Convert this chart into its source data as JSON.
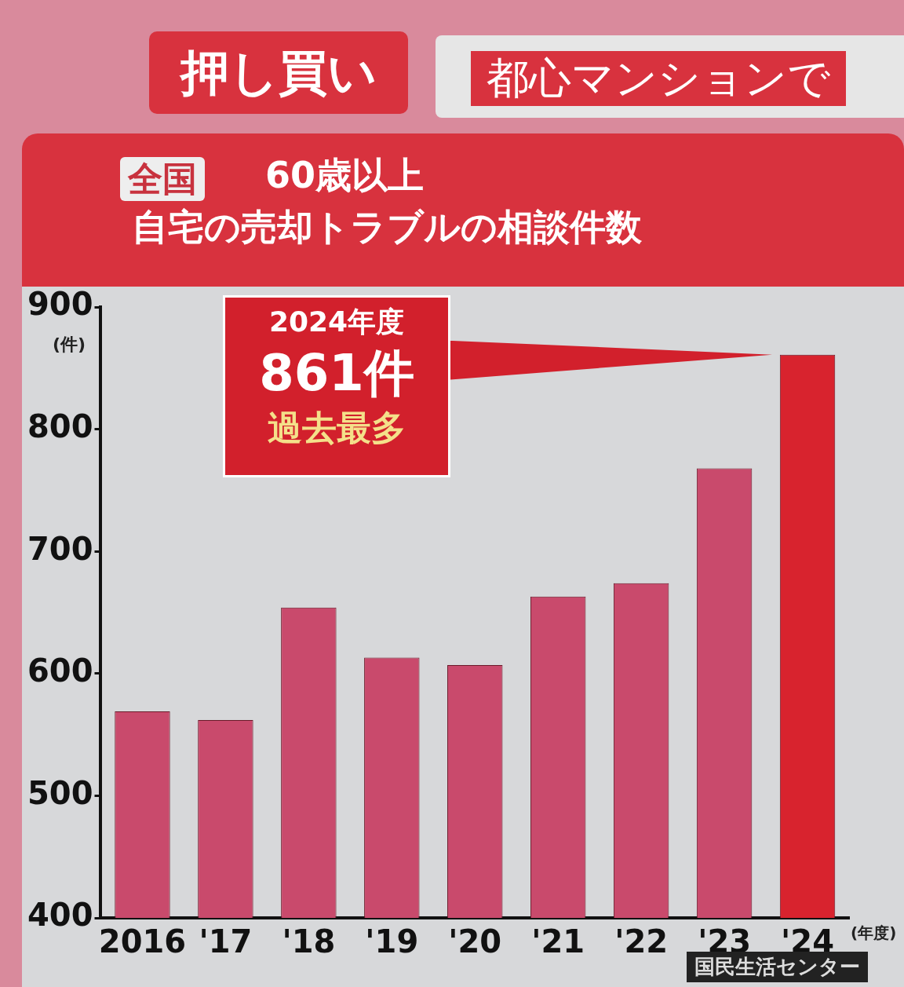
{
  "chart_data": {
    "type": "bar",
    "title": "60歳以上",
    "subtitle": "自宅の売却トラブルの相談件数",
    "ylabel": "(件)",
    "xlabel": "(年度)",
    "categories": [
      "2016",
      "'17",
      "'18",
      "'19",
      "'20",
      "'21",
      "'22",
      "'23",
      "'24"
    ],
    "values": [
      569,
      562,
      654,
      613,
      607,
      663,
      674,
      768,
      861
    ],
    "colors": [
      "#c94a6c",
      "#c94a6c",
      "#c94a6c",
      "#c94a6c",
      "#c94a6c",
      "#c94a6c",
      "#c94a6c",
      "#c94a6c",
      "#d8232e"
    ],
    "ylim": [
      400,
      900
    ],
    "yticks": [
      400,
      500,
      600,
      700,
      800,
      900
    ],
    "grid": false,
    "annotations": [
      "押し買い",
      "都心マンションで",
      "全国",
      "2024年度",
      "861件",
      "過去最多",
      "国民生活センター"
    ]
  }
}
